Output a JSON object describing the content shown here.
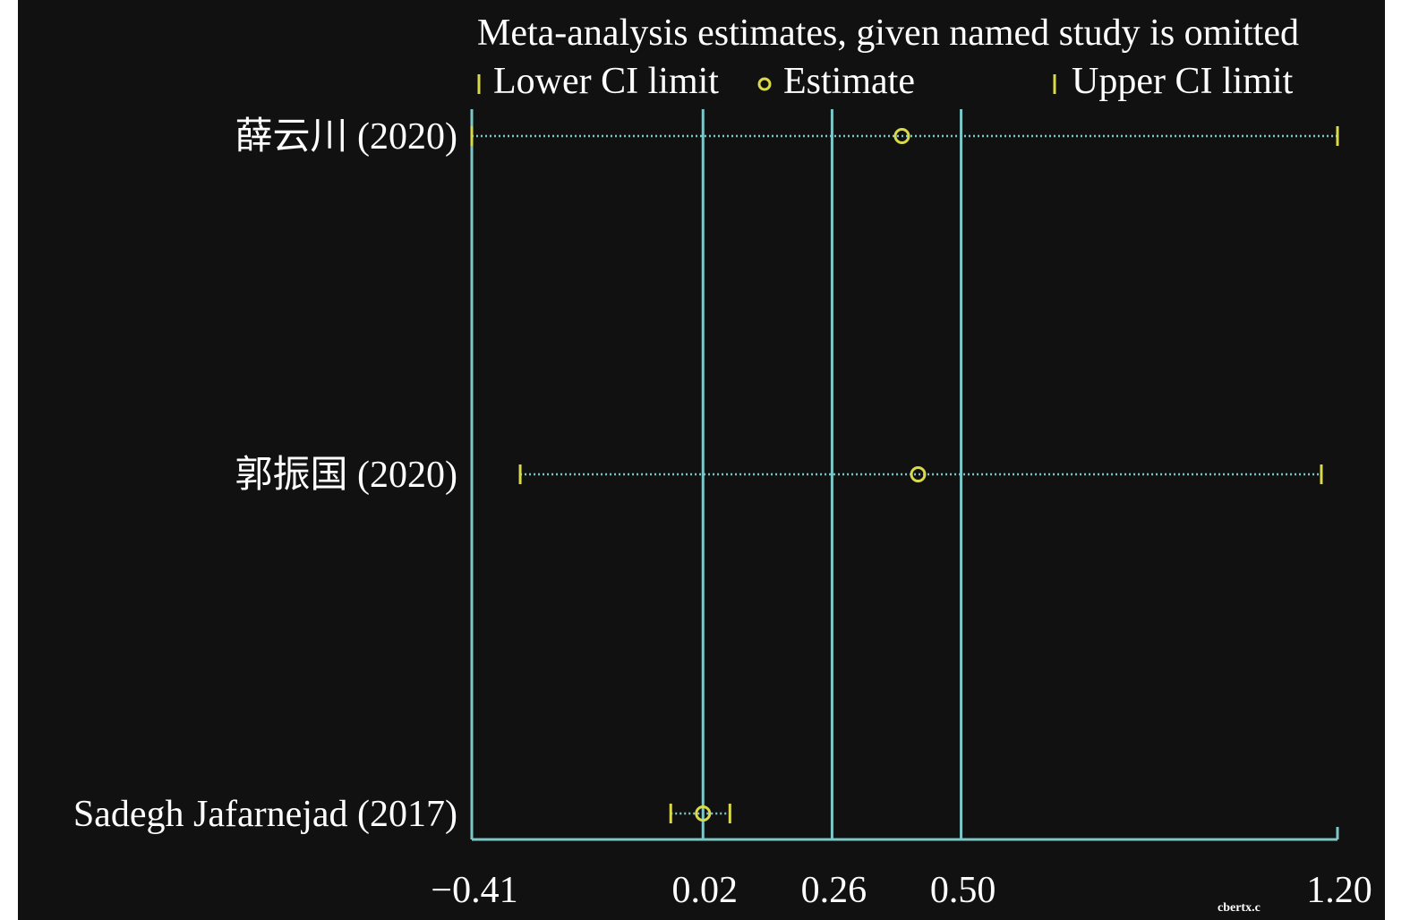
{
  "chart_data": {
    "type": "scatter",
    "title": "Meta-analysis estimates, given named study is omitted",
    "legend": {
      "placement": "top",
      "entries": [
        "Lower CI limit",
        "Estimate",
        "Upper CI limit"
      ]
    },
    "xlim": [
      -0.41,
      1.2
    ],
    "xticks": [
      -0.41,
      0.02,
      0.26,
      0.5,
      1.2
    ],
    "xtick_labels": [
      "−0.41",
      "0.02",
      "0.26",
      "0.50",
      "1.20"
    ],
    "reference_lines": [
      -0.41,
      0.02,
      0.26,
      0.5
    ],
    "studies": [
      {
        "label": "薛云川 (2020)",
        "lower": -0.41,
        "estimate": 0.39,
        "upper": 1.2
      },
      {
        "label": "郭振国 (2020)",
        "lower": -0.32,
        "estimate": 0.42,
        "upper": 1.17
      },
      {
        "label": "Sadegh Jafarnejad (2017)",
        "lower": -0.04,
        "estimate": 0.02,
        "upper": 0.07
      }
    ],
    "colors": {
      "background": "#111111",
      "axis": "#7cc8c8",
      "marker": "#d9d94a",
      "text": "#ffffff"
    },
    "watermark": "cbertx.c"
  }
}
